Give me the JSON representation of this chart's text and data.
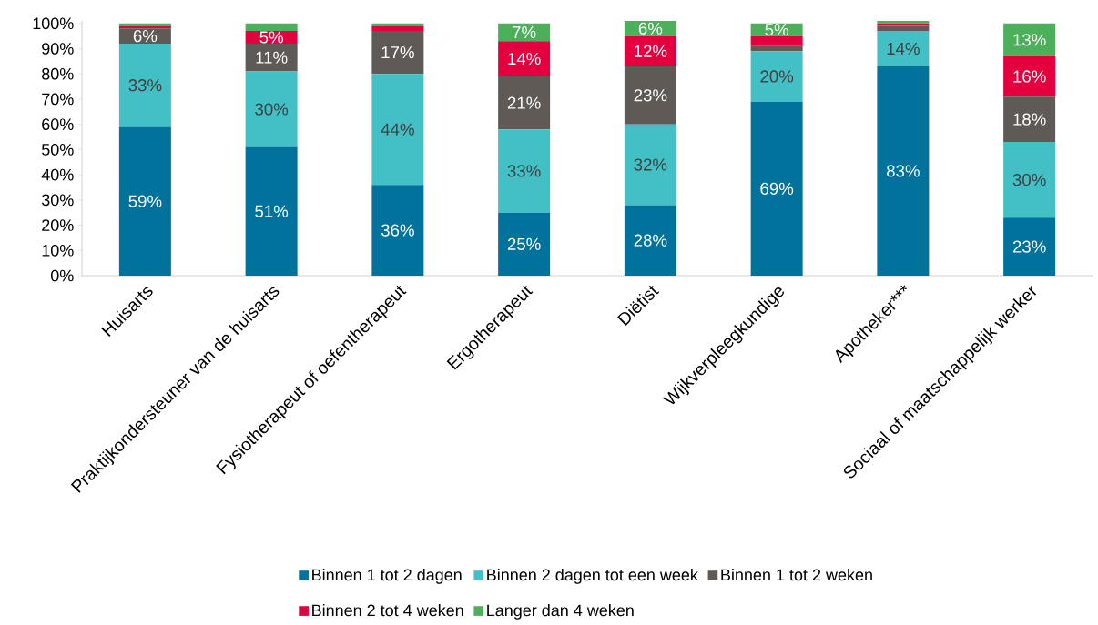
{
  "chart_data": {
    "type": "bar",
    "stacked": true,
    "categories": [
      "Huisarts",
      "Praktijkondersteuner van de huisarts",
      "Fysiotherapeut of oefentherapeut",
      "Ergotherapeut",
      "Diëtist",
      "Wijkverpleegkundige",
      "Apotheker***",
      "Sociaal of maatschappelijk werker"
    ],
    "series": [
      {
        "name": "Binnen 1 tot 2 dagen",
        "color": "#00729c",
        "values": [
          59,
          51,
          36,
          25,
          28,
          69,
          83,
          23
        ],
        "value_labels": [
          "59%",
          "51%",
          "36%",
          "25%",
          "28%",
          "69%",
          "83%",
          "23%"
        ]
      },
      {
        "name": "Binnen 2 dagen tot een week",
        "color": "#42c0c6",
        "values": [
          33,
          30,
          44,
          33,
          32,
          20,
          14,
          30
        ],
        "value_labels": [
          "33%",
          "30%",
          "44%",
          "33%",
          "32%",
          "20%",
          "14%",
          "30%"
        ]
      },
      {
        "name": "Binnen 1 tot 2 weken",
        "color": "#5f5a56",
        "values": [
          6,
          11,
          17,
          21,
          23,
          2,
          2,
          18
        ],
        "value_labels": [
          "6%",
          "11%",
          "17%",
          "21%",
          "23%",
          null,
          null,
          "18%"
        ]
      },
      {
        "name": "Binnen 2 tot 4 weken",
        "color": "#e4003f",
        "values": [
          1,
          5,
          2,
          14,
          12,
          4,
          1,
          16
        ],
        "value_labels": [
          null,
          "5%",
          null,
          "14%",
          "12%",
          null,
          null,
          "16%"
        ]
      },
      {
        "name": "Langer dan 4 weken",
        "color": "#4caf5a",
        "values": [
          1,
          3,
          1,
          7,
          6,
          5,
          1,
          13
        ],
        "value_labels": [
          null,
          null,
          null,
          "7%",
          "6%",
          "5%",
          null,
          "13%"
        ]
      }
    ],
    "ylim": [
      0,
      101
    ],
    "yticks": [
      {
        "value": 0,
        "label": "0%"
      },
      {
        "value": 10,
        "label": "10%"
      },
      {
        "value": 20,
        "label": "20%"
      },
      {
        "value": 30,
        "label": "30%"
      },
      {
        "value": 40,
        "label": "40%"
      },
      {
        "value": 50,
        "label": "50%"
      },
      {
        "value": 60,
        "label": "60%"
      },
      {
        "value": 70,
        "label": "70%"
      },
      {
        "value": 80,
        "label": "80%"
      },
      {
        "value": 90,
        "label": "90%"
      },
      {
        "value": 100,
        "label": "100%"
      }
    ],
    "grid": false,
    "legend": "bottom"
  }
}
